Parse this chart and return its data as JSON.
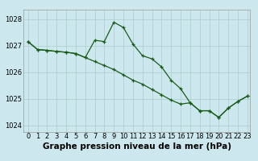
{
  "title": "Graphe pression niveau de la mer (hPa)",
  "background_color": "#cce8ee",
  "grid_color": "#aacccc",
  "line_color": "#1a5c1a",
  "marker_color": "#1a5c1a",
  "xlim_min": -0.5,
  "xlim_max": 23.3,
  "ylim_min": 1023.75,
  "ylim_max": 1028.35,
  "xticks": [
    0,
    1,
    2,
    3,
    4,
    5,
    6,
    7,
    8,
    9,
    10,
    11,
    12,
    13,
    14,
    15,
    16,
    17,
    18,
    19,
    20,
    21,
    22,
    23
  ],
  "yticks": [
    1024,
    1025,
    1026,
    1027,
    1028
  ],
  "series1_x": [
    0,
    1,
    2,
    3,
    4,
    5,
    6,
    7,
    8,
    9,
    10,
    11,
    12,
    13,
    14,
    15,
    16,
    17,
    18,
    19,
    20,
    21,
    22,
    23
  ],
  "series1_y": [
    1027.15,
    1026.85,
    1026.82,
    1026.78,
    1026.75,
    1026.7,
    1026.55,
    1027.2,
    1027.15,
    1027.88,
    1027.68,
    1027.06,
    1026.62,
    1026.5,
    1026.2,
    1025.7,
    1025.38,
    1024.85,
    1024.55,
    1024.55,
    1024.3,
    1024.65,
    1024.9,
    1025.1
  ],
  "series2_x": [
    0,
    1,
    2,
    3,
    4,
    5,
    6,
    7,
    8,
    9,
    10,
    11,
    12,
    13,
    14,
    15,
    16,
    17,
    18,
    19,
    20,
    21,
    22,
    23
  ],
  "series2_y": [
    1027.15,
    1026.85,
    1026.82,
    1026.78,
    1026.75,
    1026.7,
    1026.55,
    1026.4,
    1026.25,
    1026.1,
    1025.9,
    1025.7,
    1025.55,
    1025.35,
    1025.15,
    1024.95,
    1024.8,
    1024.85,
    1024.55,
    1024.55,
    1024.3,
    1024.65,
    1024.9,
    1025.1
  ],
  "title_fontsize": 7.5,
  "tick_fontsize": 6
}
